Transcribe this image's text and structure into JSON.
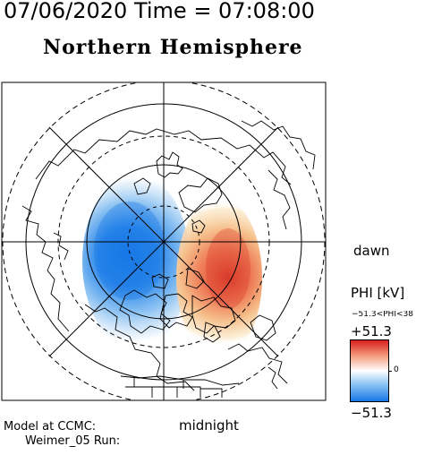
{
  "header": {
    "title_line": "07/06/2020 Time = 07:08:00",
    "hemisphere": "Northern Hemisphere"
  },
  "labels": {
    "dawn": "dawn",
    "midnight": "midnight",
    "model": "Model at CCMC:",
    "run": "Weimer_05 Run:"
  },
  "colorbar": {
    "title": "PHI [kV]",
    "range_text": "−51.3<PHI<38",
    "max_label": "+51.3",
    "zero_label": "0",
    "min_label": "−51.3",
    "max_value": 51.3,
    "min_value": -51.3,
    "colors": {
      "positive": "#d81e1e",
      "zero": "#ffffff",
      "negative": "#1877e6"
    }
  },
  "map": {
    "projection": "polar-stereographic-north",
    "potential_cells": [
      {
        "sign": "negative",
        "color": "#1877e6"
      },
      {
        "sign": "positive",
        "color": "#d81e1e"
      }
    ]
  }
}
